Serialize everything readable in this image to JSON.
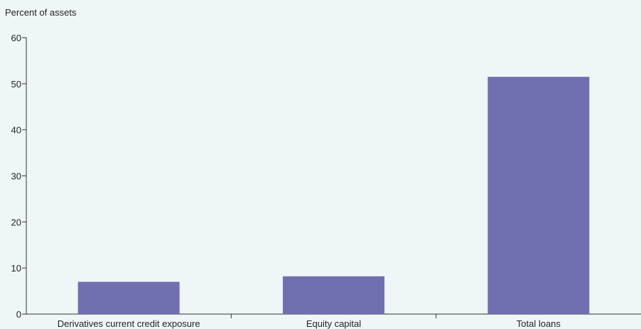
{
  "chart_data": {
    "type": "bar",
    "title": "",
    "xlabel": "",
    "ylabel": "Percent of assets",
    "categories": [
      "Derivatives current credit exposure",
      "Equity capital",
      "Total loans"
    ],
    "values": [
      7.0,
      8.2,
      51.5
    ],
    "ylim": [
      0,
      60
    ],
    "yticks": [
      "0",
      "10",
      "20",
      "30",
      "40",
      "50",
      "60"
    ],
    "grid": false,
    "legend": "none",
    "colors": {
      "bar": "#7070b0",
      "axis": "#333333",
      "background": "#eff6f7"
    }
  }
}
